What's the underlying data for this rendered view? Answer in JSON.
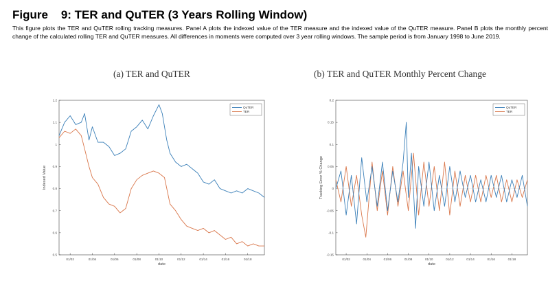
{
  "figure": {
    "title": "Figure    9: TER and QuTER (3 Years Rolling Window)",
    "caption": "This figure plots the TER and QuTER rolling tracking measures. Panel A plots the indexed value of the TER measure and the indexed value of the QuTER measure. Panel B plots the monthly percent change of the calculated rolling TER and QuTER measures. All differences in moments were computed over 3 year rolling windows. The sample period is from January 1998 to June 2019."
  },
  "colors": {
    "quter": "#3a7fb8",
    "ter": "#d9764a",
    "axis": "#444444"
  },
  "chart_data": [
    {
      "type": "line",
      "title": "(a) TER and QuTER",
      "xlabel": "date",
      "ylabel": "Indexed Value",
      "xlim": [
        2001.0,
        2019.5
      ],
      "ylim": [
        0.5,
        1.2
      ],
      "yticks": [
        0.5,
        0.6,
        0.7,
        0.8,
        0.9,
        1.0,
        1.1,
        1.2
      ],
      "ytick_labels": [
        "0.5",
        "0.6",
        "0.7",
        "0.8",
        "0.9",
        "1",
        "1.1",
        "1.2"
      ],
      "xticks": [
        2002,
        2004,
        2006,
        2008,
        2010,
        2012,
        2014,
        2016,
        2018
      ],
      "xtick_labels": [
        "01/02",
        "01/04",
        "01/06",
        "01/08",
        "01/10",
        "01/12",
        "01/14",
        "01/16",
        "01/18"
      ],
      "legend": [
        "QuTER",
        "TER"
      ],
      "legend_position": "top-right",
      "series": [
        {
          "name": "QuTER",
          "x": [
            2001.0,
            2001.5,
            2002.0,
            2002.5,
            2003.0,
            2003.3,
            2003.7,
            2004.0,
            2004.5,
            2005.0,
            2005.5,
            2006.0,
            2006.5,
            2007.0,
            2007.5,
            2008.0,
            2008.5,
            2009.0,
            2009.5,
            2009.8,
            2010.0,
            2010.3,
            2010.7,
            2011.0,
            2011.5,
            2012.0,
            2012.5,
            2013.0,
            2013.5,
            2014.0,
            2014.5,
            2015.0,
            2015.5,
            2016.0,
            2016.5,
            2017.0,
            2017.5,
            2018.0,
            2018.5,
            2019.0,
            2019.5
          ],
          "values": [
            1.04,
            1.1,
            1.13,
            1.09,
            1.1,
            1.14,
            1.02,
            1.08,
            1.01,
            1.01,
            0.99,
            0.95,
            0.96,
            0.98,
            1.06,
            1.08,
            1.11,
            1.07,
            1.13,
            1.16,
            1.18,
            1.14,
            1.02,
            0.96,
            0.92,
            0.9,
            0.91,
            0.89,
            0.87,
            0.83,
            0.82,
            0.84,
            0.8,
            0.79,
            0.78,
            0.79,
            0.78,
            0.8,
            0.79,
            0.78,
            0.76
          ]
        },
        {
          "name": "TER",
          "x": [
            2001.0,
            2001.5,
            2002.0,
            2002.5,
            2003.0,
            2003.3,
            2003.7,
            2004.0,
            2004.5,
            2005.0,
            2005.5,
            2006.0,
            2006.5,
            2007.0,
            2007.5,
            2008.0,
            2008.5,
            2009.0,
            2009.5,
            2010.0,
            2010.5,
            2011.0,
            2011.5,
            2012.0,
            2012.5,
            2013.0,
            2013.5,
            2014.0,
            2014.5,
            2015.0,
            2015.5,
            2016.0,
            2016.5,
            2017.0,
            2017.5,
            2018.0,
            2018.5,
            2019.0,
            2019.5
          ],
          "values": [
            1.03,
            1.06,
            1.05,
            1.07,
            1.04,
            0.98,
            0.9,
            0.85,
            0.82,
            0.76,
            0.73,
            0.72,
            0.69,
            0.71,
            0.8,
            0.84,
            0.86,
            0.87,
            0.88,
            0.87,
            0.85,
            0.73,
            0.7,
            0.66,
            0.63,
            0.62,
            0.61,
            0.62,
            0.6,
            0.61,
            0.59,
            0.57,
            0.58,
            0.55,
            0.56,
            0.54,
            0.55,
            0.54,
            0.54
          ]
        }
      ]
    },
    {
      "type": "line",
      "title": "(b) TER and QuTER Monthly Percent Change",
      "xlabel": "date",
      "ylabel": "Tracking Error % Change",
      "xlim": [
        2001.0,
        2019.5
      ],
      "ylim": [
        -0.15,
        0.2
      ],
      "yticks": [
        -0.15,
        -0.1,
        -0.05,
        0,
        0.05,
        0.1,
        0.15,
        0.2
      ],
      "ytick_labels": [
        "-0.15",
        "-0.1",
        "-0.05",
        "0",
        "0.05",
        "0.1",
        "0.15",
        "0.2"
      ],
      "xticks": [
        2002,
        2004,
        2006,
        2008,
        2010,
        2012,
        2014,
        2016,
        2018
      ],
      "xtick_labels": [
        "01/02",
        "01/04",
        "01/06",
        "01/08",
        "01/10",
        "01/12",
        "01/14",
        "01/16",
        "01/18"
      ],
      "legend": [
        "QuTER",
        "TER"
      ],
      "legend_position": "top-right",
      "series": [
        {
          "name": "QuTER",
          "x": [
            2001.0,
            2001.5,
            2002.0,
            2002.5,
            2003.0,
            2003.5,
            2004.0,
            2004.5,
            2005.0,
            2005.5,
            2006.0,
            2006.5,
            2007.0,
            2007.5,
            2007.8,
            2008.0,
            2008.3,
            2008.7,
            2009.0,
            2009.5,
            2010.0,
            2010.5,
            2011.0,
            2011.5,
            2012.0,
            2012.5,
            2013.0,
            2013.5,
            2014.0,
            2014.5,
            2015.0,
            2015.5,
            2016.0,
            2016.5,
            2017.0,
            2017.5,
            2018.0,
            2018.5,
            2019.0,
            2019.5
          ],
          "values": [
            0.0,
            0.04,
            -0.06,
            0.03,
            -0.08,
            0.07,
            -0.03,
            0.05,
            -0.04,
            0.06,
            -0.05,
            0.04,
            -0.03,
            0.06,
            0.15,
            -0.02,
            0.08,
            -0.09,
            0.05,
            -0.04,
            0.06,
            -0.05,
            0.03,
            -0.04,
            0.05,
            -0.03,
            0.04,
            -0.02,
            0.03,
            -0.03,
            0.02,
            -0.03,
            0.03,
            -0.02,
            0.03,
            -0.03,
            0.02,
            -0.02,
            0.03,
            -0.04
          ]
        },
        {
          "name": "TER",
          "x": [
            2001.0,
            2001.5,
            2002.0,
            2002.5,
            2003.0,
            2003.5,
            2003.9,
            2004.5,
            2005.0,
            2005.5,
            2006.0,
            2006.5,
            2007.0,
            2007.5,
            2008.0,
            2008.5,
            2009.0,
            2009.5,
            2010.0,
            2010.5,
            2011.0,
            2011.5,
            2012.0,
            2012.5,
            2013.0,
            2013.5,
            2014.0,
            2014.5,
            2015.0,
            2015.5,
            2016.0,
            2016.5,
            2017.0,
            2017.5,
            2018.0,
            2018.5,
            2019.0,
            2019.5
          ],
          "values": [
            0.02,
            -0.03,
            0.05,
            -0.04,
            0.03,
            -0.06,
            -0.11,
            0.06,
            -0.05,
            0.04,
            -0.06,
            0.05,
            -0.04,
            0.04,
            -0.05,
            0.08,
            -0.06,
            0.06,
            -0.04,
            0.05,
            -0.05,
            0.06,
            -0.06,
            0.04,
            -0.04,
            0.03,
            -0.03,
            0.03,
            -0.03,
            0.03,
            -0.02,
            0.03,
            -0.03,
            0.02,
            -0.03,
            0.02,
            -0.02,
            0.02
          ]
        }
      ]
    }
  ]
}
